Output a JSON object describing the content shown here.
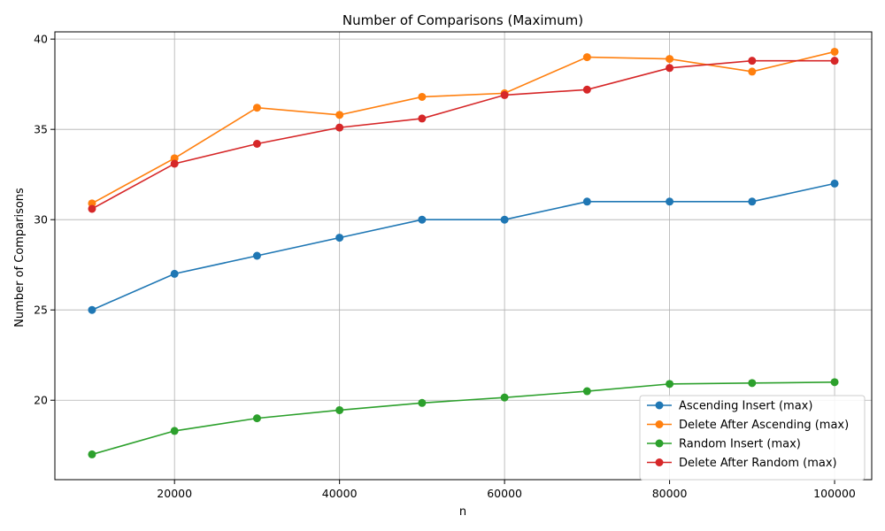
{
  "chart_data": {
    "type": "line",
    "title": "Number of Comparisons (Maximum)",
    "xlabel": "n",
    "ylabel": "Number of Comparisons",
    "x": [
      10000,
      20000,
      30000,
      40000,
      50000,
      60000,
      70000,
      80000,
      90000,
      100000
    ],
    "xlim": [
      5500,
      104500
    ],
    "ylim": [
      15.6,
      40.4
    ],
    "xticks": [
      20000,
      40000,
      60000,
      80000,
      100000
    ],
    "xtick_labels": [
      "20000",
      "40000",
      "60000",
      "80000",
      "100000"
    ],
    "yticks": [
      20,
      25,
      30,
      35,
      40
    ],
    "ytick_labels": [
      "20",
      "25",
      "30",
      "35",
      "40"
    ],
    "grid": true,
    "legend_position": "lower-right",
    "markers": "circle",
    "series": [
      {
        "name": "Ascending Insert (max)",
        "color": "#1f77b4",
        "values": [
          25,
          27,
          28,
          29,
          30,
          30,
          31,
          31,
          31,
          32
        ]
      },
      {
        "name": "Delete After Ascending (max)",
        "color": "#ff7f0e",
        "values": [
          30.9,
          33.4,
          36.2,
          35.8,
          36.8,
          37.0,
          39.0,
          38.9,
          38.2,
          39.3
        ]
      },
      {
        "name": "Random Insert (max)",
        "color": "#2ca02c",
        "values": [
          17.0,
          18.3,
          19.0,
          19.45,
          19.85,
          20.15,
          20.5,
          20.9,
          20.95,
          21.0
        ]
      },
      {
        "name": "Delete After Random (max)",
        "color": "#d62728",
        "values": [
          30.6,
          33.1,
          34.2,
          35.1,
          35.6,
          36.9,
          37.2,
          38.4,
          38.8,
          38.8
        ]
      }
    ]
  }
}
